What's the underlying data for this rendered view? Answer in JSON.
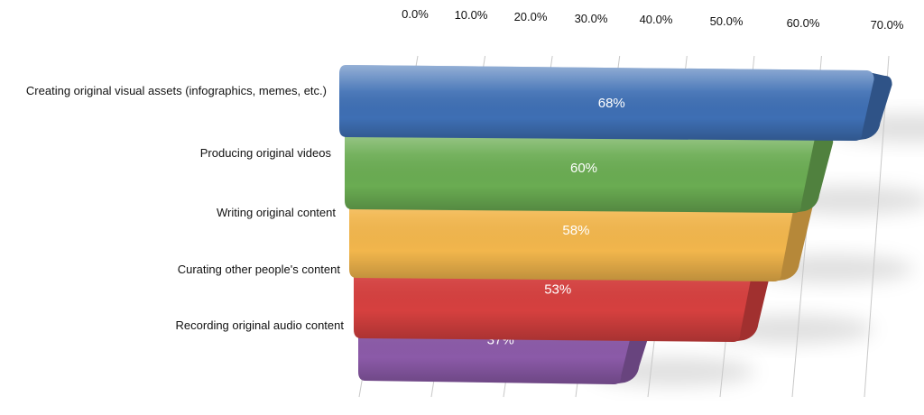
{
  "chart_data": {
    "type": "bar",
    "orientation": "horizontal",
    "style": "3d-perspective",
    "title": "",
    "xlabel": "",
    "ylabel": "",
    "categories": [
      "Creating original visual assets (infographics, memes, etc.)",
      "Producing original videos",
      "Writing original content",
      "Curating other people's content",
      "Recording original audio content"
    ],
    "values": [
      68,
      60,
      58,
      53,
      37
    ],
    "data_labels": [
      "68%",
      "60%",
      "58%",
      "53%",
      "37%"
    ],
    "colors": [
      "#3e6fb4",
      "#6aac52",
      "#f2b64c",
      "#d6403f",
      "#8b5aa8"
    ],
    "xlim": [
      0,
      70
    ],
    "x_tick_labels": [
      "0.0%",
      "10.0%",
      "20.0%",
      "30.0%",
      "40.0%",
      "50.0%",
      "60.0%",
      "70.0%"
    ],
    "x_axis_position": "top",
    "grid": true,
    "legend": "none"
  }
}
